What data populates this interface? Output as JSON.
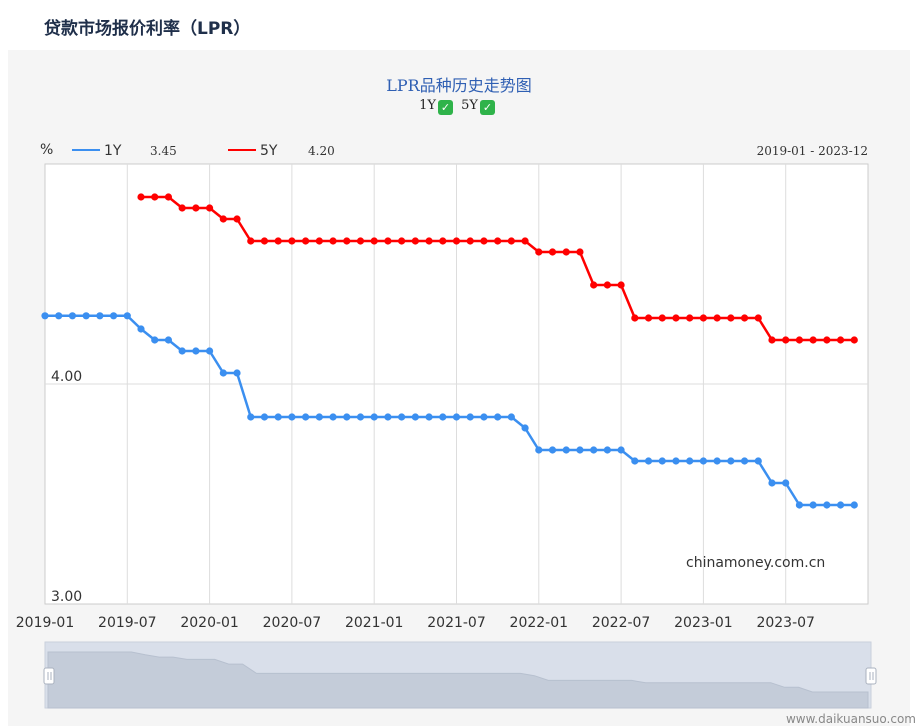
{
  "page": {
    "title": "贷款市场报价利率（LPR）",
    "watermark": "chinamoney.com.cn",
    "footer": "www.daikuansuo.com"
  },
  "legend": {
    "unit": "%",
    "series_1y": {
      "name": "1Y",
      "value": "3.45",
      "color": "#3b8ff0"
    },
    "series_5y": {
      "name": "5Y",
      "value": "4.20",
      "color": "#ff0000"
    },
    "range": "2019-01 - 2023-12",
    "toggle_1y": "1Y",
    "toggle_5y": "5Y"
  },
  "chart_data": {
    "type": "line",
    "title": "LPR品种历史走势图",
    "xlabel": "",
    "ylabel": "%",
    "ylim": [
      3.0,
      5.0
    ],
    "y_ticks": [
      "4.00",
      "3.00"
    ],
    "x_tick_labels": [
      "2019-01",
      "2019-07",
      "2020-01",
      "2020-07",
      "2021-01",
      "2021-07",
      "2022-01",
      "2022-07",
      "2023-01",
      "2023-07"
    ],
    "grid": true,
    "legend_position": "top-left",
    "series": [
      {
        "name": "1Y",
        "color": "#3b8ff0",
        "values": [
          4.31,
          4.31,
          4.31,
          4.31,
          4.31,
          4.31,
          4.31,
          4.25,
          4.2,
          4.2,
          4.15,
          4.15,
          4.15,
          4.05,
          4.05,
          3.85,
          3.85,
          3.85,
          3.85,
          3.85,
          3.85,
          3.85,
          3.85,
          3.85,
          3.85,
          3.85,
          3.85,
          3.85,
          3.85,
          3.85,
          3.85,
          3.85,
          3.85,
          3.85,
          3.85,
          3.8,
          3.7,
          3.7,
          3.7,
          3.7,
          3.7,
          3.7,
          3.7,
          3.65,
          3.65,
          3.65,
          3.65,
          3.65,
          3.65,
          3.65,
          3.65,
          3.65,
          3.65,
          3.55,
          3.55,
          3.45,
          3.45,
          3.45,
          3.45,
          3.45
        ]
      },
      {
        "name": "5Y",
        "color": "#ff0000",
        "values": [
          null,
          null,
          null,
          null,
          null,
          null,
          null,
          4.85,
          4.85,
          4.85,
          4.8,
          4.8,
          4.8,
          4.75,
          4.75,
          4.65,
          4.65,
          4.65,
          4.65,
          4.65,
          4.65,
          4.65,
          4.65,
          4.65,
          4.65,
          4.65,
          4.65,
          4.65,
          4.65,
          4.65,
          4.65,
          4.65,
          4.65,
          4.65,
          4.65,
          4.65,
          4.6,
          4.6,
          4.6,
          4.6,
          4.45,
          4.45,
          4.45,
          4.3,
          4.3,
          4.3,
          4.3,
          4.3,
          4.3,
          4.3,
          4.3,
          4.3,
          4.3,
          4.2,
          4.2,
          4.2,
          4.2,
          4.2,
          4.2,
          4.2
        ]
      }
    ]
  }
}
